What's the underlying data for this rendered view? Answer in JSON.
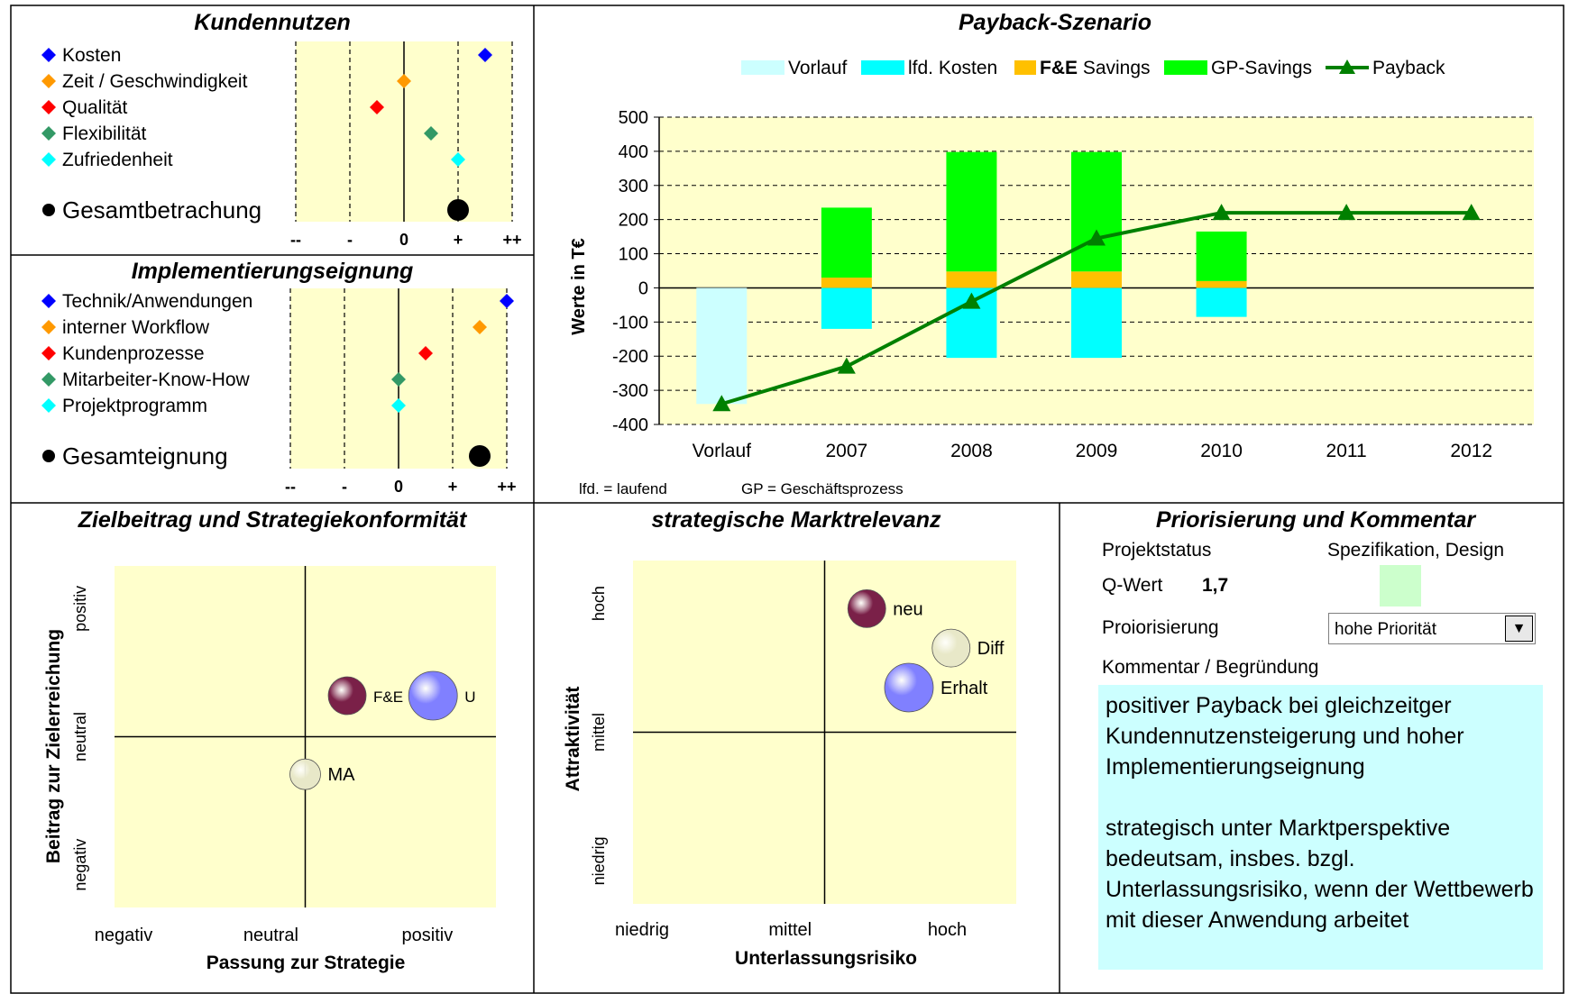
{
  "panels": {
    "kundennutzen": {
      "title": "Kundennutzen",
      "scale": [
        "--",
        "-",
        "0",
        "+",
        "++"
      ],
      "items": [
        {
          "label": "Kosten",
          "color": "#0000ff",
          "value": 1.5
        },
        {
          "label": "Zeit / Geschwindigkeit",
          "color": "#ff9900",
          "value": 0
        },
        {
          "label": "Qualität",
          "color": "#ff0000",
          "value": -0.5
        },
        {
          "label": "Flexibilität",
          "color": "#339966",
          "value": 0.5
        },
        {
          "label": "Zufriedenheit",
          "color": "#00ffff",
          "value": 1
        }
      ],
      "total": {
        "label": "Gesamtbetrachung",
        "value": 1
      }
    },
    "implementierung": {
      "title": "Implementierungseignung",
      "scale": [
        "--",
        "-",
        "0",
        "+",
        "++"
      ],
      "items": [
        {
          "label": "Technik/Anwendungen",
          "color": "#0000ff",
          "value": 2
        },
        {
          "label": "interner Workflow",
          "color": "#ff9900",
          "value": 1.5
        },
        {
          "label": "Kundenprozesse",
          "color": "#ff0000",
          "value": 0.5
        },
        {
          "label": "Mitarbeiter-Know-How",
          "color": "#339966",
          "value": 0
        },
        {
          "label": "Projektprogramm",
          "color": "#00ffff",
          "value": 0
        }
      ],
      "total": {
        "label": "Gesamteignung",
        "value": 1.5
      }
    },
    "payback": {
      "title": "Payback-Szenario",
      "legend": [
        {
          "label": "Vorlauf",
          "color": "#ccffff",
          "type": "box"
        },
        {
          "label": "lfd. Kosten",
          "color": "#00ffff",
          "type": "box"
        },
        {
          "label": "F&E",
          "color": "#ffc000",
          "type": "box",
          "bold": true,
          "suffix": "Savings"
        },
        {
          "label": "GP-Savings",
          "color": "#00ff00",
          "type": "box"
        },
        {
          "label": "Payback",
          "color": "#008000",
          "type": "line"
        }
      ],
      "ylabel": "Werte in T€",
      "footnote_lfd": "lfd. = laufend",
      "footnote_gp": "GP = Geschäftsprozess"
    },
    "zielbeitrag": {
      "title": "Zielbeitrag und Strategiekonformität",
      "xlabel": "Passung zur Strategie",
      "ylabel": "Beitrag zur Zielerreichung",
      "xticks": [
        "negativ",
        "neutral",
        "positiv"
      ],
      "yticks": [
        "negativ",
        "neutral",
        "positiv"
      ]
    },
    "markt": {
      "title": "strategische Marktrelevanz",
      "xlabel": "Unterlassungsrisiko",
      "ylabel": "Attraktivität",
      "xticks": [
        "niedrig",
        "mittel",
        "hoch"
      ],
      "yticks": [
        "niedrig",
        "mittel",
        "hoch"
      ]
    },
    "priorisierung": {
      "title": "Priorisierung und Kommentar",
      "projektstatus_label": "Projektstatus",
      "projektstatus_value": "Spezifikation, Design",
      "qwert_label": "Q-Wert",
      "qwert_value": "1,7",
      "status_color": "#ccffcc",
      "prio_label": "Proiorisierung",
      "prio_value": "hohe Priorität",
      "kommentar_label": "Kommentar / Begründung",
      "kommentar_p1": "positiver Payback bei gleichzeitger Kundennutzensteigerung und hoher Implementierungseignung",
      "kommentar_p2": "strategisch unter Marktperspektive bedeutsam, insbes. bzgl. Unterlassungsrisiko, wenn der Wettbewerb mit dieser Anwendung arbeitet"
    }
  },
  "chart_data": [
    {
      "type": "scatter",
      "title": "Kundennutzen",
      "xlim": [
        -2,
        2
      ],
      "xticks": [
        "--",
        "-",
        "0",
        "+",
        "++"
      ],
      "series": [
        {
          "name": "Kosten",
          "x": 1.5
        },
        {
          "name": "Zeit / Geschwindigkeit",
          "x": 0
        },
        {
          "name": "Qualität",
          "x": -0.5
        },
        {
          "name": "Flexibilität",
          "x": 0.5
        },
        {
          "name": "Zufriedenheit",
          "x": 1
        },
        {
          "name": "Gesamtbetrachung",
          "x": 1
        }
      ]
    },
    {
      "type": "scatter",
      "title": "Implementierungseignung",
      "xlim": [
        -2,
        2
      ],
      "xticks": [
        "--",
        "-",
        "0",
        "+",
        "++"
      ],
      "series": [
        {
          "name": "Technik/Anwendungen",
          "x": 2
        },
        {
          "name": "interner Workflow",
          "x": 1.5
        },
        {
          "name": "Kundenprozesse",
          "x": 0.5
        },
        {
          "name": "Mitarbeiter-Know-How",
          "x": 0
        },
        {
          "name": "Projektprogramm",
          "x": 0
        },
        {
          "name": "Gesamteignung",
          "x": 1.5
        }
      ]
    },
    {
      "type": "bar",
      "title": "Payback-Szenario",
      "ylabel": "Werte in T€",
      "ylim": [
        -400,
        500
      ],
      "yticks": [
        500,
        400,
        300,
        200,
        100,
        0,
        -100,
        -200,
        -300,
        -400
      ],
      "categories": [
        "Vorlauf",
        "2007",
        "2008",
        "2009",
        "2010",
        "2011",
        "2012"
      ],
      "stacked": true,
      "series": [
        {
          "name": "Vorlauf",
          "color": "#ccffff",
          "values": [
            -340,
            0,
            0,
            0,
            0,
            0,
            0
          ]
        },
        {
          "name": "lfd. Kosten",
          "color": "#00ffff",
          "values": [
            0,
            -120,
            -205,
            -205,
            -85,
            0,
            0
          ]
        },
        {
          "name": "F&E Savings",
          "color": "#ffc000",
          "values": [
            0,
            30,
            48,
            48,
            20,
            0,
            0
          ]
        },
        {
          "name": "GP-Savings",
          "color": "#00ff00",
          "values": [
            0,
            205,
            350,
            350,
            145,
            0,
            0
          ]
        },
        {
          "name": "Payback",
          "type": "line",
          "color": "#008000",
          "values": [
            -340,
            -230,
            -40,
            145,
            220,
            220,
            220
          ]
        }
      ]
    },
    {
      "type": "bubble",
      "title": "Zielbeitrag und Strategiekonformität",
      "xlabel": "Passung zur Strategie",
      "ylabel": "Beitrag zur Zielerreichung",
      "xlim": [
        -1,
        1
      ],
      "ylim": [
        -1,
        1
      ],
      "points": [
        {
          "label": "F&E",
          "x": 0.22,
          "y": 0.24,
          "color": "#7a2048",
          "size": 2
        },
        {
          "label": "U",
          "x": 0.67,
          "y": 0.24,
          "color": "#8080ff",
          "size": 3
        },
        {
          "label": "MA",
          "x": 0.0,
          "y": -0.22,
          "color": "#e8e8c8",
          "size": 1
        }
      ]
    },
    {
      "type": "bubble",
      "title": "strategische Marktrelevanz",
      "xlabel": "Unterlassungsrisiko",
      "ylabel": "Attraktivität",
      "xlim": [
        -1,
        1
      ],
      "ylim": [
        -1,
        1
      ],
      "points": [
        {
          "label": "neu",
          "x": 0.22,
          "y": 0.72,
          "color": "#7a2048",
          "size": 2
        },
        {
          "label": "Diff",
          "x": 0.66,
          "y": 0.49,
          "color": "#e8e8c8",
          "size": 2
        },
        {
          "label": "Erhalt",
          "x": 0.44,
          "y": 0.26,
          "color": "#8080ff",
          "size": 3
        }
      ]
    }
  ]
}
